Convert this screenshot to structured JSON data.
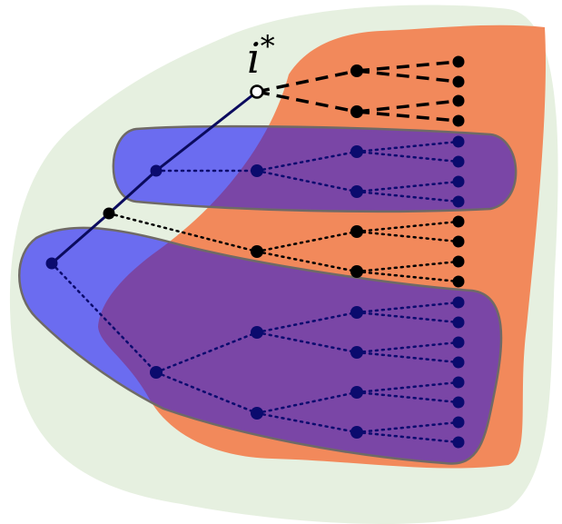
{
  "label": {
    "base": "i",
    "superscript": "*"
  },
  "colors": {
    "background_blob": "#e6f0e0",
    "orange_region": "#f2895b",
    "blue_region": "#6b6cf0",
    "overlap_purple": "#7a46a6",
    "region_stroke": "#6f6a66",
    "path_line": "#0b0b5e",
    "black": "#000000",
    "navy_node": "#0b0b6e",
    "open_node_fill": "#ffffff"
  }
}
